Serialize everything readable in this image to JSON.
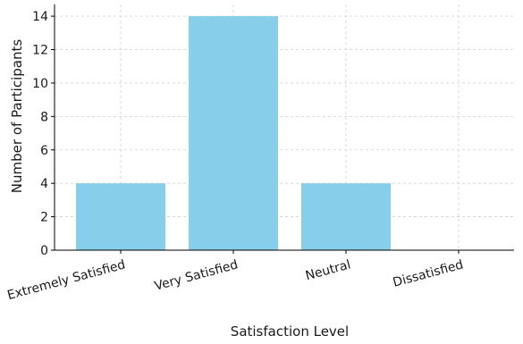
{
  "chart_data": {
    "type": "bar",
    "title": "",
    "categories": [
      "Extremely Satisfied",
      "Very Satisfied",
      "Neutral",
      "Dissatisfied"
    ],
    "values": [
      4,
      14,
      4,
      0
    ],
    "xlabel": "Satisfaction Level",
    "ylabel": "Number of Participants",
    "ylim": [
      0,
      14.7
    ],
    "yticks": [
      0,
      2,
      4,
      6,
      8,
      10,
      12,
      14
    ],
    "grid": true,
    "bar_color": "#87CEEB",
    "x_tick_rotation_deg": 15
  }
}
